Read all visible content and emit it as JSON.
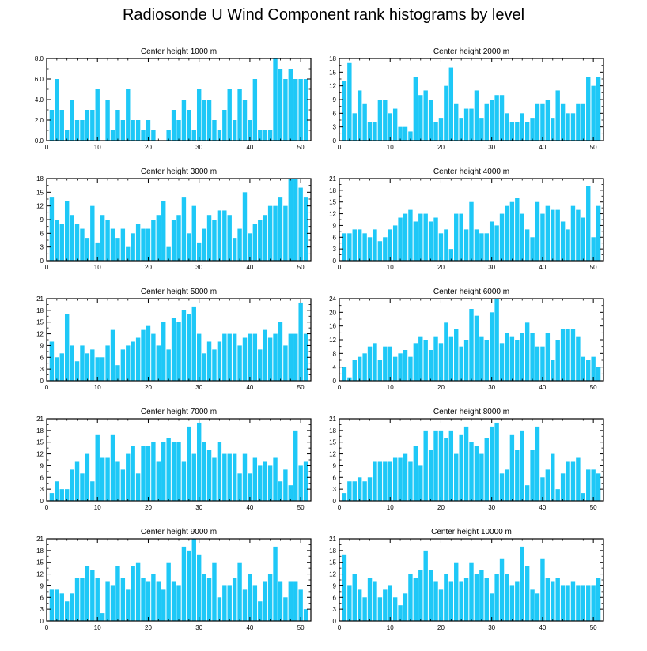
{
  "title": "Radiosonde U Wind Component rank histograms by level",
  "colors": {
    "bar": "#1EC8F7",
    "frame": "#000000",
    "background": "#FFFFFF"
  },
  "chart_data": [
    {
      "type": "bar",
      "title": "Center height 1000 m",
      "xlim": [
        0,
        52
      ],
      "ylim": [
        0,
        8
      ],
      "xticks": [
        0,
        10,
        20,
        30,
        40,
        50
      ],
      "xtick_labels": [
        "0",
        "10",
        "20",
        "30",
        "40",
        "50"
      ],
      "yticks": [
        0,
        2,
        4,
        6,
        8
      ],
      "ytick_labels": [
        "0.0",
        "2.0",
        "4.0",
        "6.0",
        "8.0"
      ],
      "x": [
        1,
        2,
        3,
        4,
        5,
        6,
        7,
        8,
        9,
        10,
        11,
        12,
        13,
        14,
        15,
        16,
        17,
        18,
        19,
        20,
        21,
        22,
        23,
        24,
        25,
        26,
        27,
        28,
        29,
        30,
        31,
        32,
        33,
        34,
        35,
        36,
        37,
        38,
        39,
        40,
        41,
        42,
        43,
        44,
        45,
        46,
        47,
        48,
        49,
        50,
        51
      ],
      "values": [
        3,
        6,
        3,
        1,
        4,
        2,
        2,
        3,
        3,
        5,
        0,
        4,
        1,
        3,
        2,
        5,
        2,
        2,
        1,
        2,
        1,
        0,
        0,
        1,
        3,
        2,
        4,
        3,
        1,
        5,
        4,
        4,
        2,
        1,
        3,
        5,
        2,
        5,
        4,
        2,
        6,
        1,
        1,
        1,
        8,
        7,
        6,
        7,
        6,
        6,
        6
      ]
    },
    {
      "type": "bar",
      "title": "Center height 2000 m",
      "xlim": [
        0,
        52
      ],
      "ylim": [
        0,
        18
      ],
      "xticks": [
        0,
        10,
        20,
        30,
        40,
        50
      ],
      "xtick_labels": [
        "0",
        "10",
        "20",
        "30",
        "40",
        "50"
      ],
      "yticks": [
        0,
        3,
        6,
        9,
        12,
        15,
        18
      ],
      "ytick_labels": [
        "0",
        "3",
        "6",
        "9",
        "12",
        "15",
        "18"
      ],
      "x": [
        1,
        2,
        3,
        4,
        5,
        6,
        7,
        8,
        9,
        10,
        11,
        12,
        13,
        14,
        15,
        16,
        17,
        18,
        19,
        20,
        21,
        22,
        23,
        24,
        25,
        26,
        27,
        28,
        29,
        30,
        31,
        32,
        33,
        34,
        35,
        36,
        37,
        38,
        39,
        40,
        41,
        42,
        43,
        44,
        45,
        46,
        47,
        48,
        49,
        50,
        51
      ],
      "values": [
        13,
        17,
        6,
        11,
        8,
        4,
        4,
        9,
        9,
        6,
        7,
        3,
        3,
        2,
        14,
        10,
        11,
        9,
        4,
        5,
        12,
        16,
        8,
        5,
        7,
        7,
        11,
        5,
        8,
        9,
        10,
        10,
        6,
        4,
        4,
        6,
        4,
        5,
        8,
        8,
        9,
        5,
        11,
        8,
        6,
        6,
        8,
        8,
        14,
        12,
        14
      ]
    },
    {
      "type": "bar",
      "title": "Center height 3000 m",
      "xlim": [
        0,
        52
      ],
      "ylim": [
        0,
        18
      ],
      "xticks": [
        0,
        10,
        20,
        30,
        40,
        50
      ],
      "xtick_labels": [
        "0",
        "10",
        "20",
        "30",
        "40",
        "50"
      ],
      "yticks": [
        0,
        3,
        6,
        9,
        12,
        15,
        18
      ],
      "ytick_labels": [
        "0",
        "3",
        "6",
        "9",
        "12",
        "15",
        "18"
      ],
      "x": [
        1,
        2,
        3,
        4,
        5,
        6,
        7,
        8,
        9,
        10,
        11,
        12,
        13,
        14,
        15,
        16,
        17,
        18,
        19,
        20,
        21,
        22,
        23,
        24,
        25,
        26,
        27,
        28,
        29,
        30,
        31,
        32,
        33,
        34,
        35,
        36,
        37,
        38,
        39,
        40,
        41,
        42,
        43,
        44,
        45,
        46,
        47,
        48,
        49,
        50,
        51
      ],
      "values": [
        14,
        9,
        8,
        13,
        10,
        8,
        7,
        5,
        12,
        4,
        10,
        9,
        7,
        5,
        7,
        3,
        6,
        8,
        7,
        7,
        9,
        10,
        13,
        3,
        9,
        10,
        14,
        6,
        12,
        4,
        7,
        10,
        9,
        11,
        11,
        10,
        5,
        7,
        15,
        6,
        8,
        9,
        10,
        12,
        12,
        14,
        12,
        18,
        18,
        16,
        14
      ]
    },
    {
      "type": "bar",
      "title": "Center height 4000 m",
      "xlim": [
        0,
        52
      ],
      "ylim": [
        0,
        21
      ],
      "xticks": [
        0,
        10,
        20,
        30,
        40,
        50
      ],
      "xtick_labels": [
        "0",
        "10",
        "20",
        "30",
        "40",
        "50"
      ],
      "yticks": [
        0,
        3,
        6,
        9,
        12,
        15,
        18,
        21
      ],
      "ytick_labels": [
        "0",
        "3",
        "6",
        "9",
        "12",
        "15",
        "18",
        "21"
      ],
      "x": [
        1,
        2,
        3,
        4,
        5,
        6,
        7,
        8,
        9,
        10,
        11,
        12,
        13,
        14,
        15,
        16,
        17,
        18,
        19,
        20,
        21,
        22,
        23,
        24,
        25,
        26,
        27,
        28,
        29,
        30,
        31,
        32,
        33,
        34,
        35,
        36,
        37,
        38,
        39,
        40,
        41,
        42,
        43,
        44,
        45,
        46,
        47,
        48,
        49,
        50,
        51
      ],
      "values": [
        7,
        7,
        8,
        8,
        7,
        6,
        8,
        5,
        6,
        8,
        9,
        11,
        12,
        13,
        10,
        12,
        12,
        10,
        11,
        7,
        8,
        3,
        12,
        12,
        8,
        15,
        8,
        7,
        7,
        10,
        9,
        12,
        14,
        15,
        16,
        12,
        8,
        6,
        15,
        12,
        14,
        13,
        13,
        10,
        8,
        14,
        13,
        11,
        19,
        6,
        14
      ]
    },
    {
      "type": "bar",
      "title": "Center height 5000 m",
      "xlim": [
        0,
        52
      ],
      "ylim": [
        0,
        21
      ],
      "xticks": [
        0,
        10,
        20,
        30,
        40,
        50
      ],
      "xtick_labels": [
        "0",
        "10",
        "20",
        "30",
        "40",
        "50"
      ],
      "yticks": [
        0,
        3,
        6,
        9,
        12,
        15,
        18,
        21
      ],
      "ytick_labels": [
        "0",
        "3",
        "6",
        "9",
        "12",
        "15",
        "18",
        "21"
      ],
      "x": [
        1,
        2,
        3,
        4,
        5,
        6,
        7,
        8,
        9,
        10,
        11,
        12,
        13,
        14,
        15,
        16,
        17,
        18,
        19,
        20,
        21,
        22,
        23,
        24,
        25,
        26,
        27,
        28,
        29,
        30,
        31,
        32,
        33,
        34,
        35,
        36,
        37,
        38,
        39,
        40,
        41,
        42,
        43,
        44,
        45,
        46,
        47,
        48,
        49,
        50,
        51
      ],
      "values": [
        10,
        6,
        7,
        17,
        9,
        5,
        9,
        7,
        8,
        6,
        6,
        9,
        13,
        4,
        8,
        9,
        10,
        11,
        13,
        14,
        12,
        9,
        15,
        8,
        16,
        15,
        18,
        17,
        19,
        12,
        7,
        10,
        8,
        10,
        12,
        12,
        12,
        9,
        11,
        12,
        12,
        8,
        13,
        11,
        12,
        15,
        9,
        12,
        12,
        20,
        12
      ]
    },
    {
      "type": "bar",
      "title": "Center height 6000 m",
      "xlim": [
        0,
        52
      ],
      "ylim": [
        0,
        24
      ],
      "xticks": [
        0,
        10,
        20,
        30,
        40,
        50
      ],
      "xtick_labels": [
        "0",
        "10",
        "20",
        "30",
        "40",
        "50"
      ],
      "yticks": [
        0,
        4,
        8,
        12,
        16,
        20,
        24
      ],
      "ytick_labels": [
        "0",
        "4",
        "8",
        "12",
        "16",
        "20",
        "24"
      ],
      "x": [
        1,
        2,
        3,
        4,
        5,
        6,
        7,
        8,
        9,
        10,
        11,
        12,
        13,
        14,
        15,
        16,
        17,
        18,
        19,
        20,
        21,
        22,
        23,
        24,
        25,
        26,
        27,
        28,
        29,
        30,
        31,
        32,
        33,
        34,
        35,
        36,
        37,
        38,
        39,
        40,
        41,
        42,
        43,
        44,
        45,
        46,
        47,
        48,
        49,
        50,
        51
      ],
      "values": [
        4,
        1,
        6,
        7,
        8,
        10,
        11,
        6,
        10,
        10,
        7,
        8,
        9,
        7,
        11,
        13,
        12,
        9,
        13,
        11,
        17,
        13,
        15,
        10,
        12,
        21,
        19,
        13,
        12,
        20,
        24,
        11,
        14,
        13,
        12,
        14,
        17,
        14,
        10,
        10,
        14,
        6,
        12,
        15,
        15,
        15,
        13,
        7,
        6,
        7,
        4
      ]
    },
    {
      "type": "bar",
      "title": "Center height 7000 m",
      "xlim": [
        0,
        52
      ],
      "ylim": [
        0,
        21
      ],
      "xticks": [
        0,
        10,
        20,
        30,
        40,
        50
      ],
      "xtick_labels": [
        "0",
        "10",
        "20",
        "30",
        "40",
        "50"
      ],
      "yticks": [
        0,
        3,
        6,
        9,
        12,
        15,
        18,
        21
      ],
      "ytick_labels": [
        "0",
        "3",
        "6",
        "9",
        "12",
        "15",
        "18",
        "21"
      ],
      "x": [
        1,
        2,
        3,
        4,
        5,
        6,
        7,
        8,
        9,
        10,
        11,
        12,
        13,
        14,
        15,
        16,
        17,
        18,
        19,
        20,
        21,
        22,
        23,
        24,
        25,
        26,
        27,
        28,
        29,
        30,
        31,
        32,
        33,
        34,
        35,
        36,
        37,
        38,
        39,
        40,
        41,
        42,
        43,
        44,
        45,
        46,
        47,
        48,
        49,
        50,
        51
      ],
      "values": [
        2,
        5,
        3,
        3,
        8,
        10,
        7,
        12,
        5,
        17,
        11,
        11,
        17,
        10,
        8,
        12,
        14,
        7,
        14,
        14,
        15,
        10,
        15,
        16,
        15,
        15,
        10,
        19,
        12,
        20,
        15,
        13,
        11,
        15,
        12,
        12,
        12,
        7,
        12,
        7,
        11,
        9,
        10,
        9,
        11,
        5,
        8,
        4,
        18,
        9,
        10
      ]
    },
    {
      "type": "bar",
      "title": "Center height 8000 m",
      "xlim": [
        0,
        52
      ],
      "ylim": [
        0,
        21
      ],
      "xticks": [
        0,
        10,
        20,
        30,
        40,
        50
      ],
      "xtick_labels": [
        "0",
        "10",
        "20",
        "30",
        "40",
        "50"
      ],
      "yticks": [
        0,
        3,
        6,
        9,
        12,
        15,
        18,
        21
      ],
      "ytick_labels": [
        "0",
        "3",
        "6",
        "9",
        "12",
        "15",
        "18",
        "21"
      ],
      "x": [
        1,
        2,
        3,
        4,
        5,
        6,
        7,
        8,
        9,
        10,
        11,
        12,
        13,
        14,
        15,
        16,
        17,
        18,
        19,
        20,
        21,
        22,
        23,
        24,
        25,
        26,
        27,
        28,
        29,
        30,
        31,
        32,
        33,
        34,
        35,
        36,
        37,
        38,
        39,
        40,
        41,
        42,
        43,
        44,
        45,
        46,
        47,
        48,
        49,
        50,
        51
      ],
      "values": [
        2,
        5,
        5,
        6,
        5,
        6,
        10,
        10,
        10,
        10,
        11,
        11,
        12,
        10,
        14,
        9,
        18,
        13,
        18,
        18,
        16,
        18,
        12,
        17,
        19,
        15,
        14,
        12,
        16,
        19,
        20,
        7,
        8,
        17,
        13,
        18,
        4,
        13,
        19,
        6,
        8,
        12,
        3,
        7,
        10,
        10,
        11,
        2,
        8,
        8,
        7
      ]
    },
    {
      "type": "bar",
      "title": "Center height 9000 m",
      "xlim": [
        0,
        52
      ],
      "ylim": [
        0,
        21
      ],
      "xticks": [
        0,
        10,
        20,
        30,
        40,
        50
      ],
      "xtick_labels": [
        "0",
        "10",
        "20",
        "30",
        "40",
        "50"
      ],
      "yticks": [
        0,
        3,
        6,
        9,
        12,
        15,
        18,
        21
      ],
      "ytick_labels": [
        "0",
        "3",
        "6",
        "9",
        "12",
        "15",
        "18",
        "21"
      ],
      "x": [
        1,
        2,
        3,
        4,
        5,
        6,
        7,
        8,
        9,
        10,
        11,
        12,
        13,
        14,
        15,
        16,
        17,
        18,
        19,
        20,
        21,
        22,
        23,
        24,
        25,
        26,
        27,
        28,
        29,
        30,
        31,
        32,
        33,
        34,
        35,
        36,
        37,
        38,
        39,
        40,
        41,
        42,
        43,
        44,
        45,
        46,
        47,
        48,
        49,
        50,
        51
      ],
      "values": [
        8,
        8,
        7,
        5,
        7,
        11,
        11,
        14,
        13,
        11,
        2,
        10,
        9,
        14,
        11,
        8,
        14,
        15,
        11,
        10,
        12,
        10,
        8,
        15,
        10,
        9,
        19,
        18,
        21,
        17,
        12,
        11,
        15,
        6,
        9,
        9,
        11,
        15,
        8,
        12,
        9,
        5,
        10,
        12,
        19,
        10,
        6,
        10,
        10,
        8,
        3
      ]
    },
    {
      "type": "bar",
      "title": "Center height 10000 m",
      "xlim": [
        0,
        52
      ],
      "ylim": [
        0,
        21
      ],
      "xticks": [
        0,
        10,
        20,
        30,
        40,
        50
      ],
      "xtick_labels": [
        "0",
        "10",
        "20",
        "30",
        "40",
        "50"
      ],
      "yticks": [
        0,
        3,
        6,
        9,
        12,
        15,
        18,
        21
      ],
      "ytick_labels": [
        "0",
        "3",
        "6",
        "9",
        "12",
        "15",
        "18",
        "21"
      ],
      "x": [
        1,
        2,
        3,
        4,
        5,
        6,
        7,
        8,
        9,
        10,
        11,
        12,
        13,
        14,
        15,
        16,
        17,
        18,
        19,
        20,
        21,
        22,
        23,
        24,
        25,
        26,
        27,
        28,
        29,
        30,
        31,
        32,
        33,
        34,
        35,
        36,
        37,
        38,
        39,
        40,
        41,
        42,
        43,
        44,
        45,
        46,
        47,
        48,
        49,
        50,
        51
      ],
      "values": [
        17,
        9,
        12,
        8,
        6,
        11,
        10,
        6,
        8,
        9,
        6,
        4,
        7,
        12,
        11,
        13,
        18,
        13,
        10,
        8,
        12,
        10,
        15,
        10,
        11,
        15,
        12,
        13,
        11,
        7,
        12,
        16,
        12,
        9,
        10,
        19,
        14,
        8,
        7,
        16,
        11,
        10,
        11,
        9,
        9,
        10,
        9,
        9,
        9,
        9,
        11
      ]
    }
  ]
}
